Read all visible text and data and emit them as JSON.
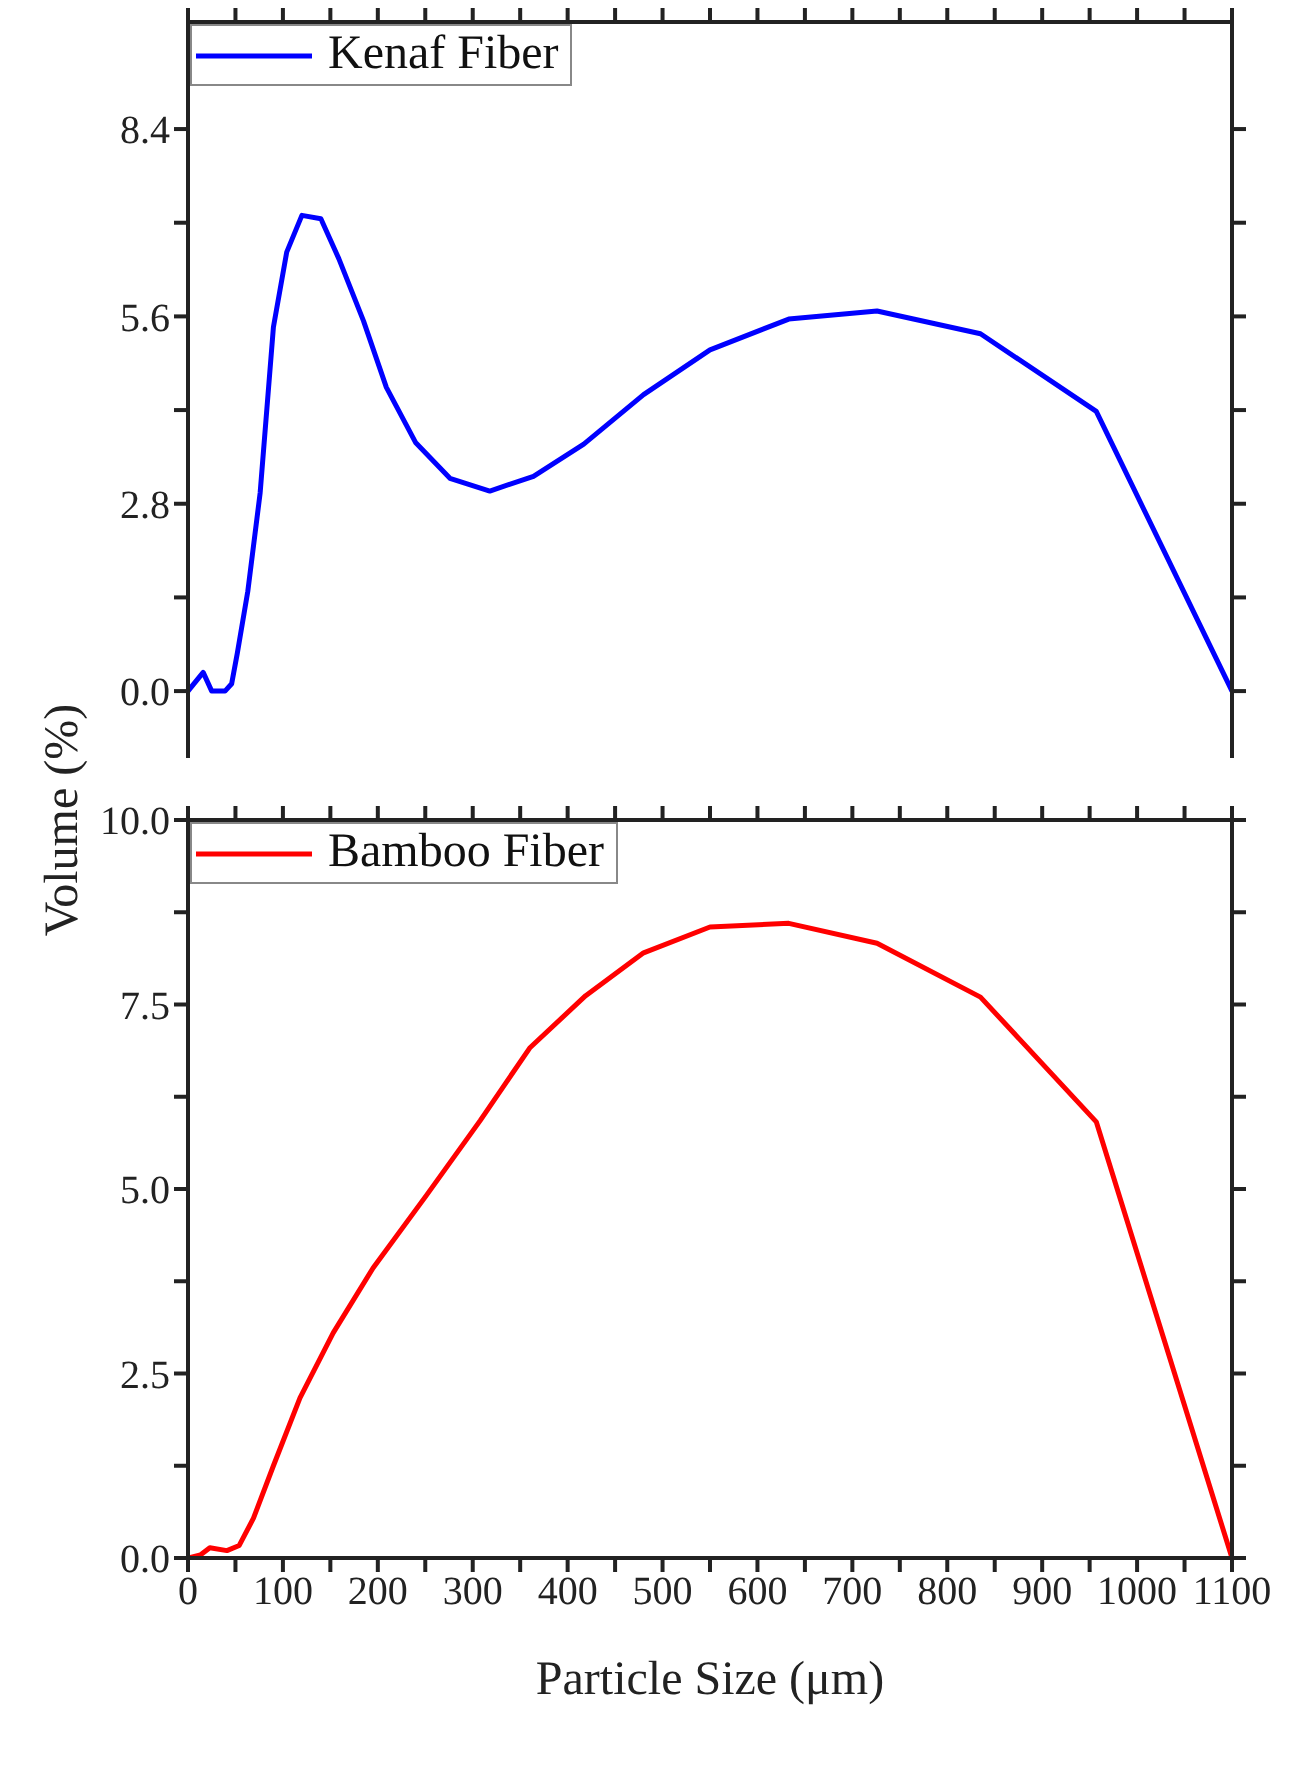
{
  "chart_data": [
    {
      "type": "line",
      "ylabel": "Volume (%)",
      "xlim": [
        0,
        1100
      ],
      "xticks": [
        0,
        {
          "value": 50,
          "label": null
        },
        100,
        {
          "value": 150,
          "label": null
        },
        200,
        {
          "value": 250,
          "label": null
        },
        300,
        {
          "value": 350,
          "label": null
        },
        400,
        {
          "value": 450,
          "label": null
        },
        500,
        {
          "value": 550,
          "label": null
        },
        600,
        {
          "value": 650,
          "label": null
        },
        700,
        {
          "value": 750,
          "label": null
        },
        800,
        {
          "value": 850,
          "label": null
        },
        900,
        {
          "value": 950,
          "label": null
        },
        1000,
        {
          "value": 1050,
          "label": null
        },
        1100
      ],
      "ylim": [
        -1,
        10
      ],
      "yticks": [
        {
          "value": 0,
          "label": "0.0"
        },
        {
          "value": 1.4,
          "label": null
        },
        {
          "value": 2.8,
          "label": "2.8"
        },
        {
          "value": 4.2,
          "label": null
        },
        {
          "value": 5.6,
          "label": "5.6"
        },
        {
          "value": 7,
          "label": null
        },
        {
          "value": 8.4,
          "label": "8.4"
        }
      ],
      "tick_labels": "y",
      "legend": "top left",
      "series": [
        {
          "name": "Kenaf Fiber",
          "color": "#0000ff",
          "x": [
            0,
            16,
            25,
            39,
            46,
            52,
            63,
            76,
            90,
            104,
            120,
            140,
            159,
            185,
            209,
            240,
            276,
            318,
            364,
            417,
            480,
            550,
            633,
            726,
            835,
            957,
            1100
          ],
          "values": [
            0,
            0.28,
            0,
            0,
            0.11,
            0.57,
            1.49,
            2.96,
            5.44,
            6.56,
            7.11,
            7.06,
            6.46,
            5.53,
            4.54,
            3.71,
            3.18,
            2.99,
            3.21,
            3.69,
            4.43,
            5.1,
            5.56,
            5.68,
            5.34,
            4.18,
            0
          ]
        }
      ]
    },
    {
      "type": "line",
      "xlabel": "Particle Size (μm)",
      "xlim": [
        0,
        1100
      ],
      "xticks": [
        0,
        {
          "value": 50,
          "label": null
        },
        100,
        {
          "value": 150,
          "label": null
        },
        200,
        {
          "value": 250,
          "label": null
        },
        300,
        {
          "value": 350,
          "label": null
        },
        400,
        {
          "value": 450,
          "label": null
        },
        500,
        {
          "value": 550,
          "label": null
        },
        600,
        {
          "value": 650,
          "label": null
        },
        700,
        {
          "value": 750,
          "label": null
        },
        800,
        {
          "value": 850,
          "label": null
        },
        900,
        {
          "value": 950,
          "label": null
        },
        1000,
        {
          "value": 1050,
          "label": null
        },
        1100
      ],
      "ylim": [
        0,
        10
      ],
      "yticks": [
        {
          "value": 0,
          "label": "0.0"
        },
        {
          "value": 1.25,
          "label": null
        },
        {
          "value": 2.5,
          "label": "2.5"
        },
        {
          "value": 3.75,
          "label": null
        },
        {
          "value": 5,
          "label": "5.0"
        },
        {
          "value": 6.25,
          "label": null
        },
        {
          "value": 7.5,
          "label": "7.5"
        },
        {
          "value": 8.75,
          "label": null
        },
        {
          "value": 10,
          "label": "10.0"
        }
      ],
      "legend": "top left",
      "series": [
        {
          "name": "Bamboo Fiber",
          "color": "#ff0000",
          "x": [
            0,
            13,
            23,
            41,
            54,
            69,
            90,
            118,
            153,
            195,
            251,
            308,
            360,
            419,
            480,
            550,
            633,
            726,
            835,
            957,
            1100
          ],
          "values": [
            0,
            0.04,
            0.14,
            0.1,
            0.17,
            0.54,
            1.25,
            2.17,
            3.05,
            3.93,
            4.91,
            5.93,
            6.91,
            7.62,
            8.2,
            8.55,
            8.6,
            8.33,
            7.6,
            5.91,
            0
          ]
        }
      ]
    }
  ]
}
